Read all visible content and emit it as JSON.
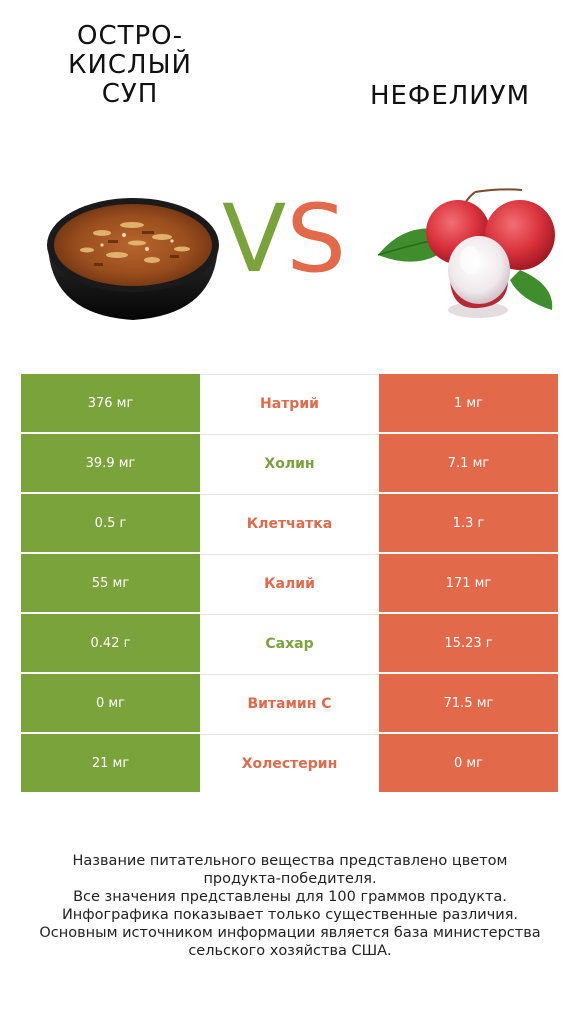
{
  "left_food": {
    "title": "ОСТРО-\nКИСЛЫЙ\nСУП",
    "image": "hot-and-sour-soup-bowl"
  },
  "right_food": {
    "title": "НЕФЕЛИУМ",
    "image": "lychee-fruits"
  },
  "vs": {
    "v": "V",
    "s": "S"
  },
  "colors": {
    "left": "#7aa33b",
    "right": "#e2694a"
  },
  "rows": [
    {
      "left": "376 мг",
      "nutrient": "Натрий",
      "right": "1 мг",
      "winner": "right"
    },
    {
      "left": "39.9 мг",
      "nutrient": "Холин",
      "right": "7.1 мг",
      "winner": "left"
    },
    {
      "left": "0.5 г",
      "nutrient": "Клетчатка",
      "right": "1.3 г",
      "winner": "right"
    },
    {
      "left": "55 мг",
      "nutrient": "Калий",
      "right": "171 мг",
      "winner": "right"
    },
    {
      "left": "0.42 г",
      "nutrient": "Сахар",
      "right": "15.23 г",
      "winner": "left"
    },
    {
      "left": "0 мг",
      "nutrient": "Витамин C",
      "right": "71.5 мг",
      "winner": "right"
    },
    {
      "left": "21 мг",
      "nutrient": "Холестерин",
      "right": "0 мг",
      "winner": "right"
    }
  ],
  "footer": [
    "Название питательного вещества представлено цветом",
    "продукта-победителя.",
    "Все значения представлены для 100 граммов продукта.",
    "Инфографика показывает только существенные различия.",
    "Основным источником информации является база министерства",
    "сельского хозяйства США."
  ]
}
